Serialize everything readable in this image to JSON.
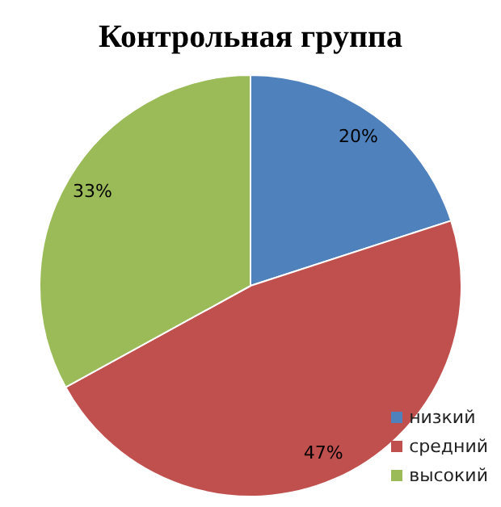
{
  "chart_data": {
    "type": "pie",
    "title": "Контрольная группа",
    "categories": [
      "низкий",
      "средний",
      "высокий"
    ],
    "values": [
      20,
      47,
      33
    ],
    "colors": [
      "#4f81bd",
      "#c0504d",
      "#9bbb59"
    ],
    "value_labels": [
      "20%",
      "47%",
      "33%"
    ],
    "legend": "bottom right"
  }
}
